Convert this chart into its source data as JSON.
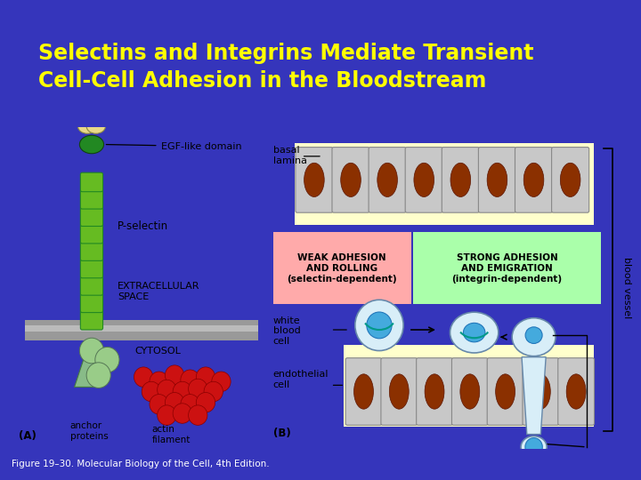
{
  "title_line1": "Selectins and Integrins Mediate Transient",
  "title_line2": "Cell-Cell Adhesion in the Bloodstream",
  "title_color": "#FFFF00",
  "header_bg": "#3535BB",
  "content_bg": "#FFFFFF",
  "caption": "Figure 19–30. Molecular Biology of the Cell, 4th Edition.",
  "caption_color": "#000000",
  "weak_box_color": "#FFAAAA",
  "strong_box_color": "#AAFFAA",
  "endothelial_bg": "#FFFFCC",
  "basal_lamina_bg": "#FFFFCC",
  "cell_body_color": "#C8C8C8",
  "cell_border_color": "#888888",
  "nucleus_color": "#8B3000",
  "wbc_outer": "#D8EEF8",
  "wbc_nucleus": "#44AADD",
  "wbc_border": "#6688AA",
  "selectin_green": "#66BB22",
  "selectin_dark": "#228822",
  "actin_red": "#CC1111",
  "lectin_cream": "#E8D888",
  "anchor_green": "#99CC88",
  "tri_green": "#88BB88",
  "membrane_dark": "#888888",
  "membrane_light": "#AAAAAA",
  "arrow_teal": "#009988",
  "figsize": [
    7.2,
    5.4
  ],
  "dpi": 100
}
